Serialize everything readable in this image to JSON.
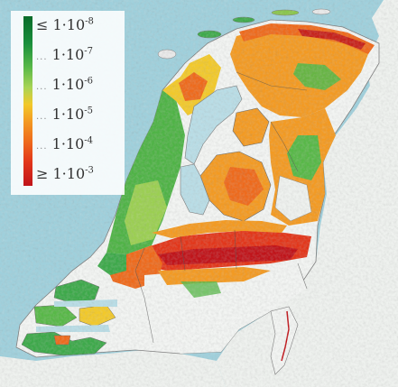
{
  "legend": {
    "items": [
      {
        "prefix": "≤ ",
        "dots": "",
        "mantissa": "1·10",
        "exp": "-8"
      },
      {
        "prefix": "",
        "dots": "...",
        "mantissa": " 1·10",
        "exp": "-7"
      },
      {
        "prefix": "",
        "dots": "...",
        "mantissa": " 1·10",
        "exp": "-6"
      },
      {
        "prefix": "",
        "dots": "...",
        "mantissa": " 1·10",
        "exp": "-5"
      },
      {
        "prefix": "",
        "dots": "...",
        "mantissa": " 1·10",
        "exp": "-4"
      },
      {
        "prefix": "≥ ",
        "dots": "",
        "mantissa": "1·10",
        "exp": "-3"
      }
    ]
  },
  "colors": {
    "sea": "#9fd0dc",
    "land_outside": "#eef1ee",
    "water_inland": "#b9dde6",
    "dyke_border": "#555555",
    "risk_low": "#0a6b2a",
    "risk_mid_low": "#58b848",
    "risk_mid": "#f2c92a",
    "risk_mid_high": "#ee6a1c",
    "risk_high": "#c0141a"
  }
}
